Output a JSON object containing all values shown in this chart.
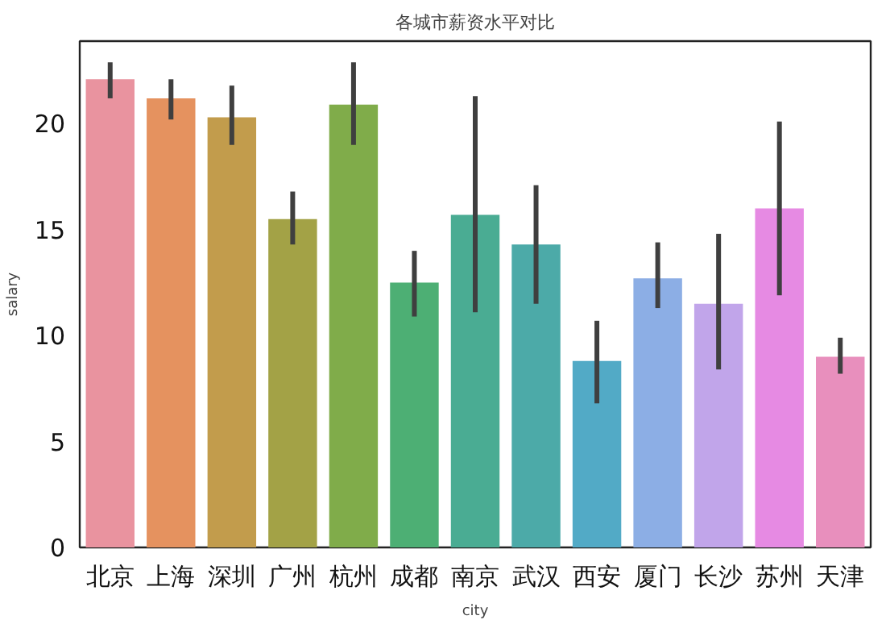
{
  "chart_data": {
    "type": "bar",
    "title": "各城市薪资水平对比",
    "xlabel": "city",
    "ylabel": "salary",
    "categories": [
      "北京",
      "上海",
      "深圳",
      "广州",
      "杭州",
      "成都",
      "南京",
      "武汉",
      "西安",
      "厦门",
      "长沙",
      "苏州",
      "天津"
    ],
    "values": [
      22.1,
      21.2,
      20.3,
      15.5,
      20.9,
      12.5,
      15.7,
      14.3,
      8.8,
      12.7,
      11.5,
      16.0,
      9.0
    ],
    "colors": [
      "#e9939f",
      "#e5925f",
      "#c29c4c",
      "#a3a246",
      "#80ac4a",
      "#4daf74",
      "#4aac93",
      "#4caaa8",
      "#52aac6",
      "#8caee5",
      "#c1a5ea",
      "#e68ae3",
      "#e88fbd"
    ],
    "errors": [
      [
        21.2,
        22.9
      ],
      [
        20.2,
        22.1
      ],
      [
        19.0,
        21.8
      ],
      [
        14.3,
        16.8
      ],
      [
        19.0,
        22.9
      ],
      [
        10.9,
        14.0
      ],
      [
        11.1,
        21.3
      ],
      [
        11.5,
        17.1
      ],
      [
        6.8,
        10.7
      ],
      [
        11.3,
        14.4
      ],
      [
        8.4,
        14.8
      ],
      [
        11.9,
        20.1
      ],
      [
        8.2,
        9.9
      ]
    ],
    "ylim": [
      0,
      23.9
    ],
    "yticks": [
      0,
      5,
      10,
      15,
      20
    ],
    "grid": false
  }
}
